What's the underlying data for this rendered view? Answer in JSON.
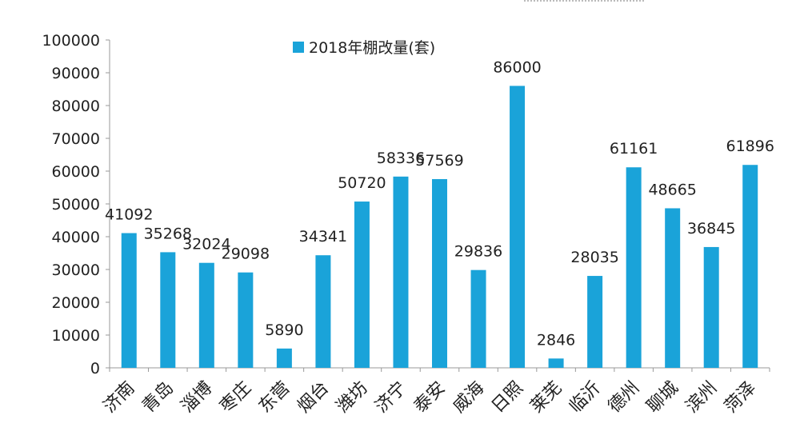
{
  "chart_data": {
    "type": "bar",
    "categories": [
      "济南",
      "青岛",
      "淄博",
      "枣庄",
      "东营",
      "烟台",
      "潍坊",
      "济宁",
      "泰安",
      "威海",
      "日照",
      "莱芜",
      "临沂",
      "德州",
      "聊城",
      "滨州",
      "菏泽"
    ],
    "series": [
      {
        "name": "2018年棚改量(套)",
        "values": [
          41092,
          35268,
          32024,
          29098,
          5890,
          34341,
          50720,
          58336,
          57569,
          29836,
          86000,
          2846,
          28035,
          61161,
          48665,
          36845,
          61896
        ],
        "color": "#1aa3d9"
      }
    ],
    "ylim": [
      0,
      100000
    ],
    "yticks": [
      0,
      10000,
      20000,
      30000,
      40000,
      50000,
      60000,
      70000,
      80000,
      90000,
      100000
    ],
    "legend_position": "top",
    "grid": false,
    "title": "",
    "xlabel": "",
    "ylabel": ""
  }
}
